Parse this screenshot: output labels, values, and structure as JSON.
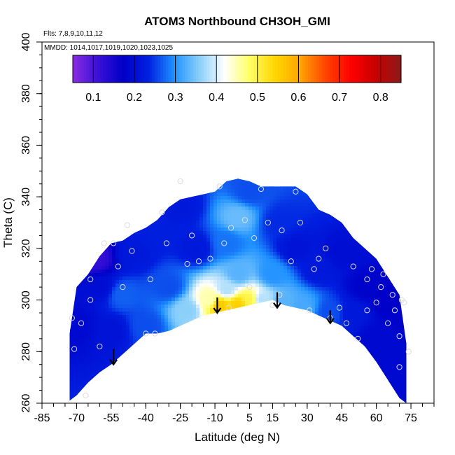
{
  "chart_data": {
    "type": "heatmap",
    "title": "ATOM3 Northbound CH3OH_GMI",
    "flights_label": "Flts: 7,8,9,10,11,12",
    "mmdd_label": "MMDD: 1014,1017,1019,1020,1023,1025",
    "xlabel": "Latitude (deg N)",
    "ylabel": "Theta (C)",
    "xlim": [
      -85,
      85
    ],
    "ylim": [
      260,
      400
    ],
    "x_ticks": [
      "-85",
      "-70",
      "-55",
      "-40",
      "-25",
      "-10",
      "5",
      "15",
      "30",
      "45",
      "60",
      "75"
    ],
    "x_tick_values": [
      -85,
      -70,
      -55,
      -40,
      -25,
      -10,
      5,
      15,
      30,
      45,
      60,
      75
    ],
    "y_ticks": [
      "260",
      "280",
      "300",
      "320",
      "340",
      "360",
      "380",
      "400"
    ],
    "y_tick_values": [
      260,
      280,
      300,
      320,
      340,
      360,
      380,
      400
    ],
    "colorbar": {
      "range": [
        0.05,
        0.85
      ],
      "ticks": [
        "0.1",
        "0.2",
        "0.3",
        "0.4",
        "0.5",
        "0.6",
        "0.7",
        "0.8"
      ],
      "tick_values": [
        0.1,
        0.2,
        0.3,
        0.4,
        0.5,
        0.6,
        0.7,
        0.8
      ],
      "colors": [
        "#8a2be2",
        "#3a10d8",
        "#0000c8",
        "#0020e0",
        "#1e90ff",
        "#87cefa",
        "#ffffff",
        "#ffff66",
        "#ffd700",
        "#ffa500",
        "#ff4500",
        "#ff0000",
        "#c80000",
        "#8b1a1a"
      ]
    },
    "boundary": {
      "lat": [
        -73,
        -70,
        -65,
        -60,
        -55,
        -50,
        -45,
        -40,
        -35,
        -30,
        -25,
        -20,
        -15,
        -10,
        -5,
        0,
        5,
        10,
        15,
        20,
        25,
        30,
        35,
        40,
        45,
        50,
        55,
        60,
        65,
        70,
        73
      ],
      "theta_bottom": [
        261,
        263,
        268,
        272,
        275,
        279,
        283,
        287,
        287,
        288,
        290,
        292,
        294,
        295,
        296,
        297,
        298,
        299,
        300,
        298,
        297,
        296,
        294,
        292,
        290,
        286,
        282,
        276,
        269,
        262,
        260
      ],
      "theta_top": [
        287,
        305,
        310,
        317,
        322,
        323,
        326,
        328,
        331,
        336,
        339,
        340,
        341,
        342,
        346,
        347,
        346,
        344,
        344,
        344,
        344,
        341,
        335,
        333,
        330,
        324,
        320,
        316,
        309,
        302,
        283
      ]
    },
    "field_anchors": [
      {
        "lat": -70,
        "theta": 290,
        "value": 0.19
      },
      {
        "lat": -62,
        "theta": 316,
        "value": 0.12
      },
      {
        "lat": -60,
        "theta": 305,
        "value": 0.2
      },
      {
        "lat": -55,
        "theta": 288,
        "value": 0.21
      },
      {
        "lat": -50,
        "theta": 302,
        "value": 0.27
      },
      {
        "lat": -45,
        "theta": 318,
        "value": 0.22
      },
      {
        "lat": -40,
        "theta": 290,
        "value": 0.26
      },
      {
        "lat": -35,
        "theta": 325,
        "value": 0.23
      },
      {
        "lat": -30,
        "theta": 305,
        "value": 0.26
      },
      {
        "lat": -25,
        "theta": 336,
        "value": 0.22
      },
      {
        "lat": -22,
        "theta": 296,
        "value": 0.36
      },
      {
        "lat": -18,
        "theta": 320,
        "value": 0.22
      },
      {
        "lat": -12,
        "theta": 300,
        "value": 0.45
      },
      {
        "lat": -8,
        "theta": 298,
        "value": 0.56
      },
      {
        "lat": -5,
        "theta": 304,
        "value": 0.38
      },
      {
        "lat": -5,
        "theta": 322,
        "value": 0.28
      },
      {
        "lat": 0,
        "theta": 298,
        "value": 0.55
      },
      {
        "lat": 0,
        "theta": 310,
        "value": 0.33
      },
      {
        "lat": 0,
        "theta": 332,
        "value": 0.34
      },
      {
        "lat": 5,
        "theta": 300,
        "value": 0.5
      },
      {
        "lat": 5,
        "theta": 342,
        "value": 0.26
      },
      {
        "lat": 10,
        "theta": 300,
        "value": 0.38
      },
      {
        "lat": 15,
        "theta": 310,
        "value": 0.3
      },
      {
        "lat": 18,
        "theta": 330,
        "value": 0.24
      },
      {
        "lat": 20,
        "theta": 298,
        "value": 0.33
      },
      {
        "lat": 25,
        "theta": 320,
        "value": 0.21
      },
      {
        "lat": 28,
        "theta": 297,
        "value": 0.32
      },
      {
        "lat": 35,
        "theta": 312,
        "value": 0.22
      },
      {
        "lat": 40,
        "theta": 295,
        "value": 0.26
      },
      {
        "lat": 45,
        "theta": 318,
        "value": 0.2
      },
      {
        "lat": 50,
        "theta": 295,
        "value": 0.22
      },
      {
        "lat": 55,
        "theta": 305,
        "value": 0.18
      },
      {
        "lat": 60,
        "theta": 285,
        "value": 0.19
      },
      {
        "lat": 65,
        "theta": 300,
        "value": 0.17
      },
      {
        "lat": 70,
        "theta": 272,
        "value": 0.19
      },
      {
        "lat": 72,
        "theta": 295,
        "value": 0.18
      }
    ],
    "sample_points": [
      {
        "lat": -72,
        "theta": 293
      },
      {
        "lat": -71,
        "theta": 281
      },
      {
        "lat": -68,
        "theta": 291
      },
      {
        "lat": -66,
        "theta": 263
      },
      {
        "lat": -64,
        "theta": 300
      },
      {
        "lat": -64,
        "theta": 308
      },
      {
        "lat": -60,
        "theta": 282
      },
      {
        "lat": -58,
        "theta": 322
      },
      {
        "lat": -54,
        "theta": 322
      },
      {
        "lat": -52,
        "theta": 313
      },
      {
        "lat": -50,
        "theta": 305
      },
      {
        "lat": -48,
        "theta": 329
      },
      {
        "lat": -46,
        "theta": 319
      },
      {
        "lat": -40,
        "theta": 287
      },
      {
        "lat": -38,
        "theta": 308
      },
      {
        "lat": -36,
        "theta": 287
      },
      {
        "lat": -33,
        "theta": 334
      },
      {
        "lat": -31,
        "theta": 322
      },
      {
        "lat": -25,
        "theta": 346
      },
      {
        "lat": -22,
        "theta": 314
      },
      {
        "lat": -20,
        "theta": 325
      },
      {
        "lat": -17,
        "theta": 315
      },
      {
        "lat": -12,
        "theta": 316
      },
      {
        "lat": -8,
        "theta": 344
      },
      {
        "lat": -6,
        "theta": 322
      },
      {
        "lat": -4,
        "theta": 297
      },
      {
        "lat": -3,
        "theta": 328
      },
      {
        "lat": 3,
        "theta": 331
      },
      {
        "lat": 5,
        "theta": 305
      },
      {
        "lat": 7,
        "theta": 324
      },
      {
        "lat": 10,
        "theta": 343
      },
      {
        "lat": 13,
        "theta": 330
      },
      {
        "lat": 15,
        "theta": 298
      },
      {
        "lat": 18,
        "theta": 302
      },
      {
        "lat": 19,
        "theta": 327
      },
      {
        "lat": 23,
        "theta": 315
      },
      {
        "lat": 25,
        "theta": 342
      },
      {
        "lat": 27,
        "theta": 330
      },
      {
        "lat": 31,
        "theta": 296
      },
      {
        "lat": 33,
        "theta": 312
      },
      {
        "lat": 35,
        "theta": 316
      },
      {
        "lat": 38,
        "theta": 320
      },
      {
        "lat": 40,
        "theta": 293
      },
      {
        "lat": 44,
        "theta": 297
      },
      {
        "lat": 47,
        "theta": 291
      },
      {
        "lat": 50,
        "theta": 313
      },
      {
        "lat": 52,
        "theta": 285
      },
      {
        "lat": 56,
        "theta": 296
      },
      {
        "lat": 56,
        "theta": 308
      },
      {
        "lat": 58,
        "theta": 312
      },
      {
        "lat": 60,
        "theta": 299
      },
      {
        "lat": 62,
        "theta": 305
      },
      {
        "lat": 63,
        "theta": 310
      },
      {
        "lat": 65,
        "theta": 291
      },
      {
        "lat": 67,
        "theta": 302
      },
      {
        "lat": 68,
        "theta": 296
      },
      {
        "lat": 70,
        "theta": 274
      },
      {
        "lat": 70,
        "theta": 286
      },
      {
        "lat": 71,
        "theta": 300
      },
      {
        "lat": 72,
        "theta": 299
      },
      {
        "lat": 74,
        "theta": 280
      }
    ],
    "arrows": [
      {
        "lat": -54,
        "theta_from": 281,
        "theta_to": 275
      },
      {
        "lat": -9,
        "theta_from": 301,
        "theta_to": 295
      },
      {
        "lat": 17,
        "theta_from": 303,
        "theta_to": 297
      },
      {
        "lat": 40,
        "theta_from": 296,
        "theta_to": 291
      }
    ]
  }
}
